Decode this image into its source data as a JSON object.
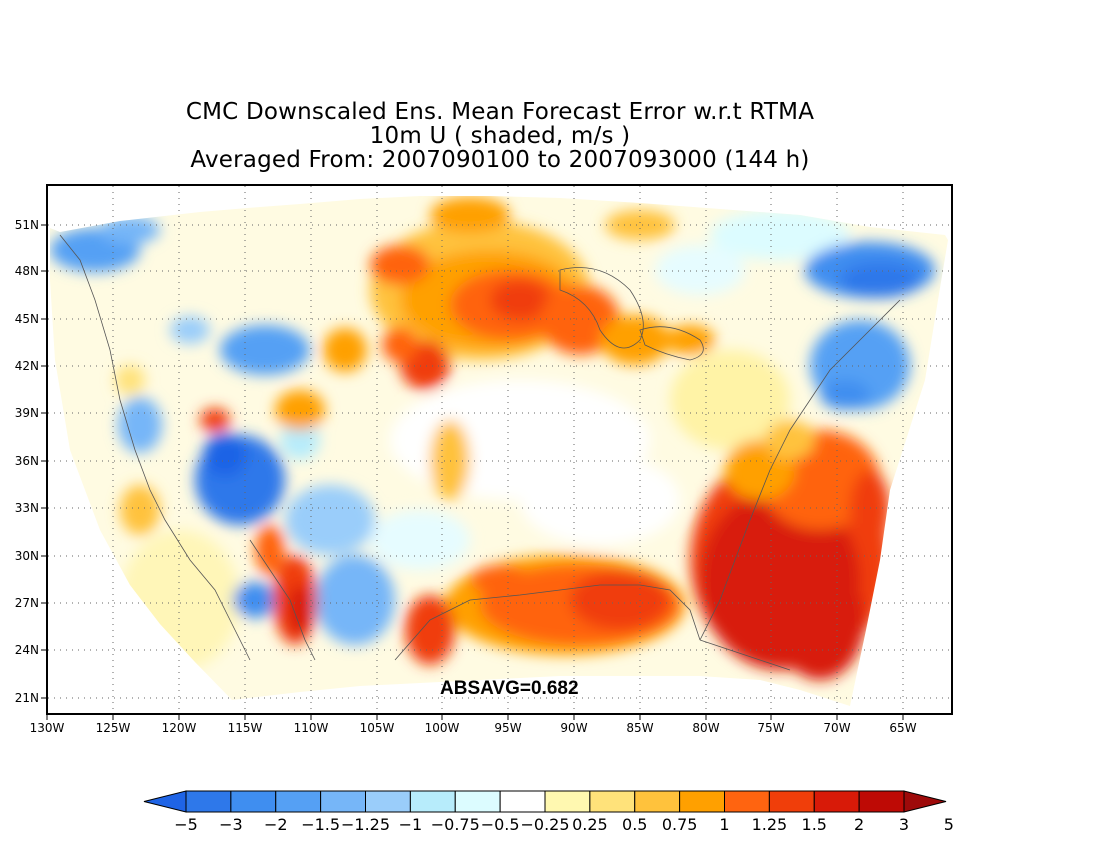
{
  "title": {
    "line1": "CMC Downscaled Ens. Mean Forecast Error w.r.t RTMA",
    "line2": "10m U ( shaded, m/s )",
    "line3": "Averaged From: 2007090100 to 2007093000 (144 h)"
  },
  "stat_label": "ABSAVG=0.682",
  "lat_labels": [
    "51N",
    "48N",
    "45N",
    "42N",
    "39N",
    "36N",
    "33N",
    "30N",
    "27N",
    "24N",
    "21N"
  ],
  "lon_labels": [
    "130W",
    "125W",
    "120W",
    "115W",
    "110W",
    "105W",
    "100W",
    "95W",
    "90W",
    "85W",
    "80W",
    "75W",
    "70W",
    "65W"
  ],
  "colorbar": {
    "labels": [
      "-5",
      "-3",
      "-2",
      "-1.5",
      "-1.25",
      "-1",
      "-0.75",
      "-0.5",
      "-0.25",
      "0.25",
      "0.5",
      "0.75",
      "1",
      "1.25",
      "1.5",
      "2",
      "3",
      "5"
    ],
    "colors": [
      "#1f64e6",
      "#2e78ea",
      "#3f8ef0",
      "#55a0f4",
      "#76b6f8",
      "#9acdfa",
      "#b7ecfb",
      "#dcfcff",
      "#ffffff",
      "#fff8b0",
      "#ffe27a",
      "#ffc23c",
      "#ffa000",
      "#ff6410",
      "#f03e0a",
      "#d81a08",
      "#be0a05",
      "#9e0a0a"
    ]
  },
  "map_features": {
    "domain": "Continental United States, southern Canada, northern Mexico, Gulf of Mexico and western Atlantic",
    "lat_range": [
      19.5,
      53
    ],
    "lon_range": [
      -130,
      -61.5
    ],
    "grid": "dotted lat/lon graticule every 3 degrees latitude and 5 degrees longitude",
    "positive_error_regions": [
      "northern Great Plains and Upper Midwest",
      "Gulf of Mexico",
      "western Atlantic off the Southeast coast",
      "Gulf of California"
    ],
    "negative_error_regions": [
      "Great Basin and Southwest",
      "Pacific Northwest coast",
      "Gulf of Maine and Nova Scotia",
      "offshore New England"
    ]
  }
}
